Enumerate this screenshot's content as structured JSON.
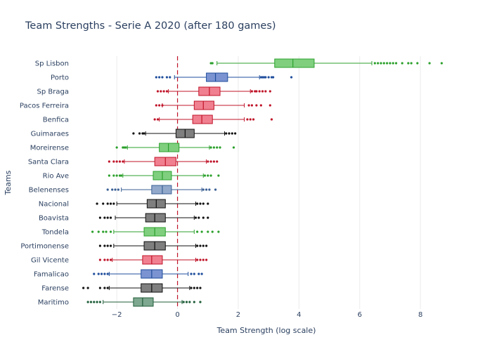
{
  "chart_data": {
    "type": "box",
    "title": "Team Strengths - Serie A 2020 (after 180 games)",
    "xlabel": "Team Strength (log scale)",
    "ylabel": "Teams",
    "xlim": [
      -3.3,
      9.2
    ],
    "xticks": [
      -2,
      0,
      2,
      4,
      6,
      8
    ],
    "xtick_labels": [
      "−2",
      "0",
      "2",
      "4",
      "6",
      "8"
    ],
    "grid": true,
    "reference_line": {
      "x": 0,
      "color": "#c0152a",
      "style": "dashed"
    },
    "series": [
      {
        "team": "Sp Lisbon",
        "color": "#2ca02c",
        "fill": "#7fcf7f",
        "q1": 3.2,
        "median": 3.8,
        "q3": 4.5,
        "whisker_low": 1.3,
        "whisker_high": 6.4,
        "outliers": [
          1.1,
          1.15,
          6.5,
          6.6,
          6.7,
          6.8,
          6.9,
          7.0,
          7.1,
          7.2,
          7.4,
          7.6,
          7.7,
          7.9,
          8.3,
          8.7
        ]
      },
      {
        "team": "Porto",
        "color": "#1f4e9c",
        "fill": "#7b93d1",
        "q1": 0.95,
        "median": 1.25,
        "q3": 1.65,
        "whisker_low": -0.1,
        "whisker_high": 2.7,
        "outliers": [
          -0.7,
          -0.6,
          -0.5,
          -0.35,
          -0.25,
          2.75,
          2.8,
          2.85,
          2.9,
          3.0,
          3.1,
          3.15,
          3.75
        ]
      },
      {
        "team": "Sp Braga",
        "color": "#c0152a",
        "fill": "#f08090",
        "q1": 0.7,
        "median": 1.05,
        "q3": 1.4,
        "whisker_low": -0.3,
        "whisker_high": 2.4,
        "outliers": [
          -0.65,
          -0.55,
          -0.45,
          -0.35,
          2.45,
          2.55,
          2.6,
          2.7,
          2.8,
          2.9,
          3.05
        ]
      },
      {
        "team": "Pacos Ferreira",
        "color": "#c0152a",
        "fill": "#f08090",
        "q1": 0.55,
        "median": 0.85,
        "q3": 1.2,
        "whisker_low": -0.5,
        "whisker_high": 2.2,
        "outliers": [
          -0.7,
          -0.6,
          -0.5,
          2.35,
          2.45,
          2.6,
          2.75,
          3.05
        ]
      },
      {
        "team": "Benfica",
        "color": "#c0152a",
        "fill": "#f08090",
        "q1": 0.5,
        "median": 0.8,
        "q3": 1.15,
        "whisker_low": -0.6,
        "whisker_high": 2.2,
        "outliers": [
          -0.75,
          -0.65,
          2.3,
          2.4,
          2.5,
          3.1
        ]
      },
      {
        "team": "Guimaraes",
        "color": "#111111",
        "fill": "#7f7f7f",
        "q1": -0.05,
        "median": 0.25,
        "q3": 0.55,
        "whisker_low": -1.05,
        "whisker_high": 1.55,
        "outliers": [
          -1.45,
          -1.25,
          -1.15,
          -1.1,
          1.6,
          1.7,
          1.8,
          1.9
        ]
      },
      {
        "team": "Moreirense",
        "color": "#2ca02c",
        "fill": "#7fcf7f",
        "q1": -0.6,
        "median": -0.3,
        "q3": 0.05,
        "whisker_low": -1.65,
        "whisker_high": 1.05,
        "outliers": [
          -2.0,
          -1.8,
          -1.75,
          -1.7,
          1.1,
          1.2,
          1.3,
          1.4,
          1.85
        ]
      },
      {
        "team": "Santa Clara",
        "color": "#c0152a",
        "fill": "#f08090",
        "q1": -0.75,
        "median": -0.4,
        "q3": -0.05,
        "whisker_low": -1.75,
        "whisker_high": 0.95,
        "outliers": [
          -2.25,
          -2.1,
          -2.0,
          -1.9,
          -1.8,
          1.0,
          1.1,
          1.2,
          1.3
        ]
      },
      {
        "team": "Rio Ave",
        "color": "#2ca02c",
        "fill": "#7fcf7f",
        "q1": -0.8,
        "median": -0.5,
        "q3": -0.2,
        "whisker_low": -1.8,
        "whisker_high": 0.85,
        "outliers": [
          -2.25,
          -2.1,
          -2.0,
          -1.9,
          -1.85,
          0.9,
          1.0,
          1.1,
          1.35
        ]
      },
      {
        "team": "Belenenses",
        "color": "#3a5f95",
        "fill": "#93a9cb",
        "q1": -0.85,
        "median": -0.5,
        "q3": -0.2,
        "whisker_low": -1.85,
        "whisker_high": 0.8,
        "outliers": [
          -2.3,
          -2.15,
          -2.05,
          -1.95,
          0.85,
          0.95,
          1.05,
          1.25
        ]
      },
      {
        "team": "Nacional",
        "color": "#111111",
        "fill": "#7f7f7f",
        "q1": -1.0,
        "median": -0.7,
        "q3": -0.4,
        "whisker_low": -2.0,
        "whisker_high": 0.6,
        "outliers": [
          -2.65,
          -2.45,
          -2.3,
          -2.2,
          -2.1,
          0.65,
          0.75,
          0.85,
          1.0
        ]
      },
      {
        "team": "Boavista",
        "color": "#111111",
        "fill": "#7f7f7f",
        "q1": -1.05,
        "median": -0.75,
        "q3": -0.4,
        "whisker_low": -2.05,
        "whisker_high": 0.55,
        "outliers": [
          -2.55,
          -2.4,
          -2.3,
          -2.2,
          0.6,
          0.7,
          0.85,
          1.0
        ]
      },
      {
        "team": "Tondela",
        "color": "#2ca02c",
        "fill": "#7fcf7f",
        "q1": -1.1,
        "median": -0.75,
        "q3": -0.4,
        "whisker_low": -2.1,
        "whisker_high": 0.55,
        "outliers": [
          -2.8,
          -2.6,
          -2.45,
          -2.35,
          -2.2,
          0.65,
          0.8,
          1.0,
          1.15,
          1.35
        ]
      },
      {
        "team": "Portimonense",
        "color": "#111111",
        "fill": "#7f7f7f",
        "q1": -1.1,
        "median": -0.75,
        "q3": -0.4,
        "whisker_low": -2.1,
        "whisker_high": 0.6,
        "outliers": [
          -2.55,
          -2.4,
          -2.3,
          -2.2,
          0.65,
          0.75,
          0.85,
          0.95
        ]
      },
      {
        "team": "Gil Vicente",
        "color": "#c0152a",
        "fill": "#f08090",
        "q1": -1.15,
        "median": -0.85,
        "q3": -0.5,
        "whisker_low": -2.15,
        "whisker_high": 0.6,
        "outliers": [
          -2.55,
          -2.4,
          -2.3,
          -2.2,
          0.65,
          0.75,
          0.85,
          0.95
        ]
      },
      {
        "team": "Famalicao",
        "color": "#1f4e9c",
        "fill": "#7b93d1",
        "q1": -1.2,
        "median": -0.85,
        "q3": -0.5,
        "whisker_low": -2.25,
        "whisker_high": 0.35,
        "outliers": [
          -2.75,
          -2.6,
          -2.5,
          -2.4,
          -2.3,
          0.45,
          0.55,
          0.7,
          0.8
        ]
      },
      {
        "team": "Farense",
        "color": "#111111",
        "fill": "#7f7f7f",
        "q1": -1.2,
        "median": -0.85,
        "q3": -0.5,
        "whisker_low": -2.25,
        "whisker_high": 0.4,
        "outliers": [
          -3.1,
          -2.95,
          -2.55,
          -2.4,
          -2.3,
          0.45,
          0.55,
          0.65,
          0.75
        ]
      },
      {
        "team": "Maritimo",
        "color": "#1f5e3a",
        "fill": "#7fa890",
        "q1": -1.45,
        "median": -1.15,
        "q3": -0.8,
        "whisker_low": -2.45,
        "whisker_high": 0.15,
        "outliers": [
          -2.95,
          -2.85,
          -2.75,
          -2.65,
          -2.55,
          0.2,
          0.3,
          0.4,
          0.55,
          0.75
        ]
      }
    ]
  }
}
